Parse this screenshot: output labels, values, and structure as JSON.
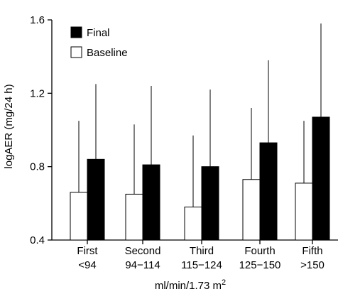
{
  "chart_data": {
    "type": "bar",
    "ylabel": "logAER (mg/24 h)",
    "xlabel": "ml/min/1.73 m",
    "xlabel_superscript": "2",
    "ylim": [
      0.4,
      1.6
    ],
    "yticks": [
      "0.4",
      "0.8",
      "1.2",
      "1.6"
    ],
    "categories": [
      "First",
      "Second",
      "Third",
      "Fourth",
      "Fifth"
    ],
    "category_ranges": [
      "<94",
      "94−114",
      "115−124",
      "125−150",
      ">150"
    ],
    "series": [
      {
        "name": "Baseline",
        "color": "#ffffff",
        "values": [
          0.66,
          0.65,
          0.58,
          0.73,
          0.71
        ],
        "error_upper": [
          1.05,
          1.03,
          0.97,
          1.12,
          1.05
        ]
      },
      {
        "name": "Final",
        "color": "#000000",
        "values": [
          0.84,
          0.81,
          0.8,
          0.93,
          1.07
        ],
        "error_upper": [
          1.25,
          1.24,
          1.22,
          1.38,
          1.58
        ]
      }
    ],
    "legend_position": "top-left",
    "grid": false
  }
}
